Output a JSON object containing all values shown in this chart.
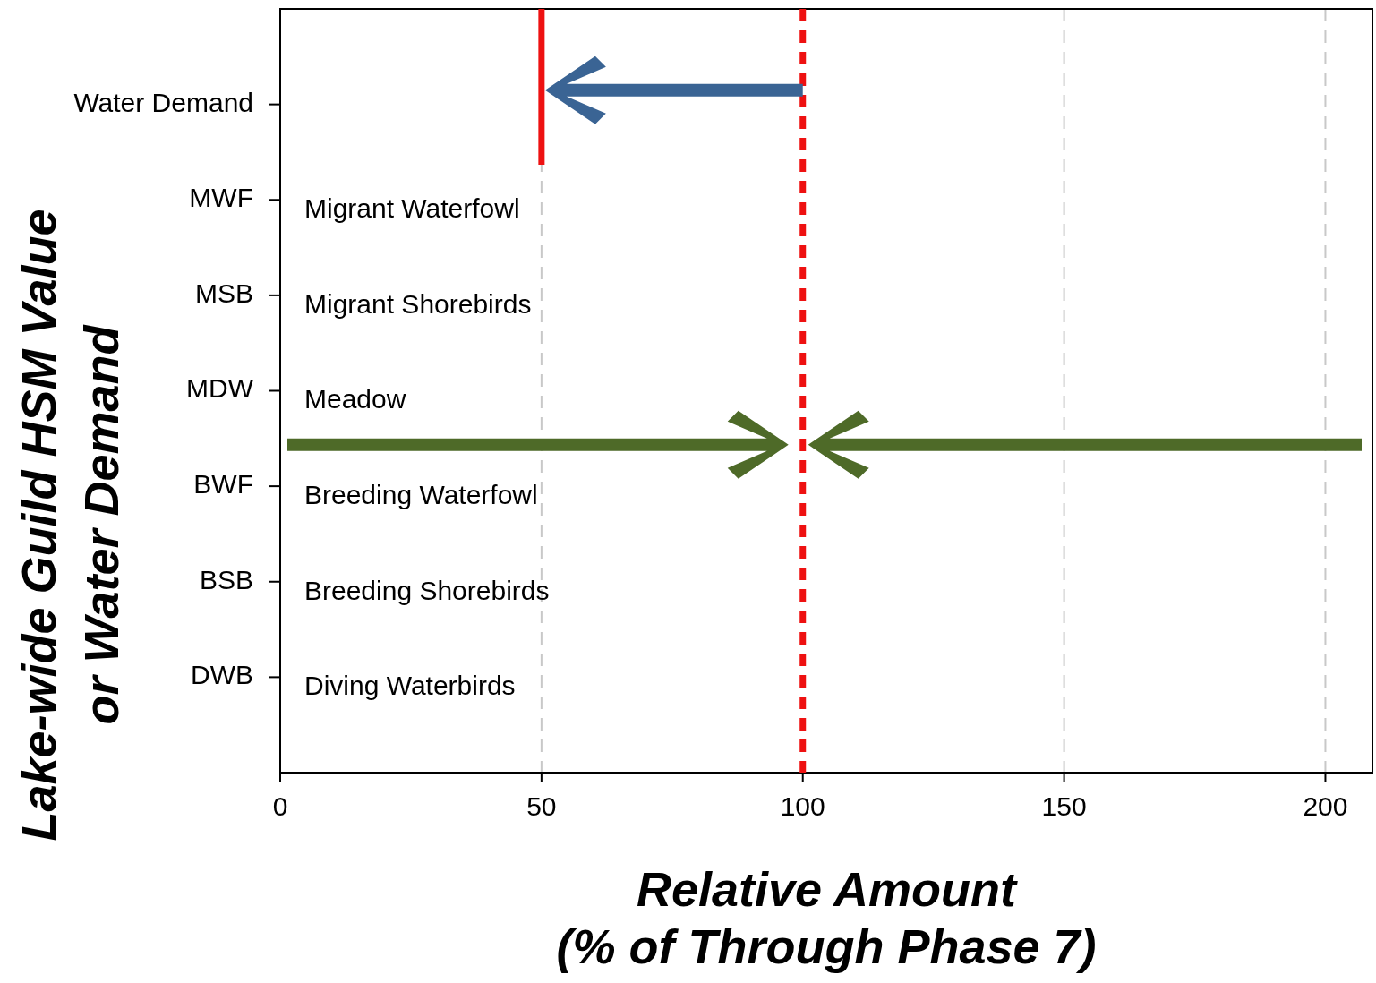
{
  "chart_data": {
    "type": "bar",
    "orientation": "horizontal",
    "values": [
      null,
      null,
      null,
      null,
      null,
      null,
      null
    ],
    "xlabel": "Relative Amount\n(% of Through Phase 7)",
    "ylabel": "Lake-wide Guild HSM Value\nor Water Demand",
    "categories": [
      "Water Demand",
      "MWF",
      "MSB",
      "MDW",
      "BWF",
      "BSB",
      "DWB"
    ],
    "xlim": [
      0,
      209
    ],
    "xticks": [
      0,
      50,
      100,
      150,
      200
    ],
    "grid": "x",
    "ref_lines": [
      {
        "axis": "x",
        "value": 100,
        "label": null,
        "color": "#ee1111",
        "line_style": "dashed"
      },
      {
        "axis": "x",
        "value": 50,
        "label": null,
        "color": "#ee1111",
        "line_style": "solid"
      }
    ],
    "annotations": [
      "Migrant Waterfowl",
      "Migrant Shorebirds",
      "Meadow",
      "Breeding Waterfowl",
      "Breeding Shorebirds",
      "Diving Waterbirds"
    ]
  }
}
